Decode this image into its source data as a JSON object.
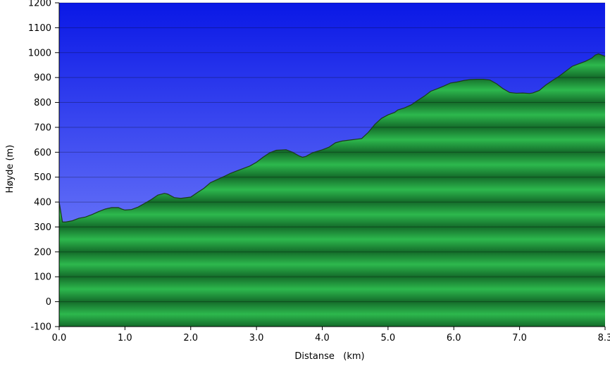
{
  "chart_data": {
    "type": "area",
    "xlabel": "Distanse   (km)",
    "ylabel": "Høyde (m)",
    "xlim": [
      0,
      8.3
    ],
    "ylim": [
      -100,
      1200
    ],
    "x_ticks": [
      0,
      1,
      2,
      3,
      4,
      5,
      6,
      7,
      8.3
    ],
    "x_tick_labels": [
      "0.0",
      "1.0",
      "2.0",
      "3.0",
      "4.0",
      "5.0",
      "6.0",
      "7.0",
      "8.3"
    ],
    "y_ticks": [
      -100,
      0,
      100,
      200,
      300,
      400,
      500,
      600,
      700,
      800,
      900,
      1000,
      1100,
      1200
    ],
    "y_tick_labels": [
      "-100",
      "0",
      "100",
      "200",
      "300",
      "400",
      "500",
      "600",
      "700",
      "800",
      "900",
      "1000",
      "1100",
      "1200"
    ],
    "grid": true,
    "colors": {
      "sky_top": "#0a18e6",
      "sky_bottom": "#8a96ff",
      "fill_light": "#2db84d",
      "fill_dark": "#146b2a",
      "outline": "#1c3a1c"
    },
    "series": [
      {
        "x": [
          0,
          0.05,
          0.1,
          0.2,
          0.3,
          0.4,
          0.5,
          0.6,
          0.7,
          0.8,
          0.9,
          0.95,
          1.0,
          1.1,
          1.2,
          1.3,
          1.4,
          1.5,
          1.6,
          1.65,
          1.75,
          1.85,
          2.0,
          2.1,
          2.2,
          2.3,
          2.4,
          2.5,
          2.6,
          2.7,
          2.8,
          2.9,
          3.0,
          3.1,
          3.2,
          3.3,
          3.45,
          3.55,
          3.65,
          3.7,
          3.75,
          3.85,
          3.95,
          4.0,
          4.1,
          4.2,
          4.3,
          4.45,
          4.6,
          4.7,
          4.8,
          4.9,
          5.0,
          5.1,
          5.15,
          5.25,
          5.35,
          5.45,
          5.55,
          5.65,
          5.75,
          5.85,
          5.95,
          6.05,
          6.15,
          6.25,
          6.35,
          6.45,
          6.55,
          6.65,
          6.75,
          6.85,
          6.95,
          7.05,
          7.15,
          7.2,
          7.3,
          7.4,
          7.5,
          7.6,
          7.7,
          7.8,
          7.9,
          8.0,
          8.1,
          8.15,
          8.2,
          8.25,
          8.3
        ],
        "y": [
          400,
          320,
          320,
          325,
          335,
          340,
          350,
          362,
          372,
          378,
          378,
          372,
          368,
          370,
          380,
          395,
          410,
          428,
          435,
          432,
          418,
          415,
          420,
          438,
          455,
          478,
          490,
          502,
          515,
          525,
          535,
          545,
          560,
          580,
          598,
          608,
          610,
          600,
          585,
          580,
          583,
          598,
          606,
          610,
          620,
          638,
          645,
          650,
          655,
          680,
          712,
          736,
          750,
          760,
          770,
          778,
          790,
          808,
          825,
          845,
          855,
          866,
          878,
          882,
          888,
          892,
          893,
          893,
          890,
          875,
          855,
          840,
          837,
          838,
          836,
          838,
          848,
          870,
          888,
          905,
          925,
          945,
          955,
          965,
          978,
          990,
          995,
          990,
          985
        ]
      }
    ]
  }
}
